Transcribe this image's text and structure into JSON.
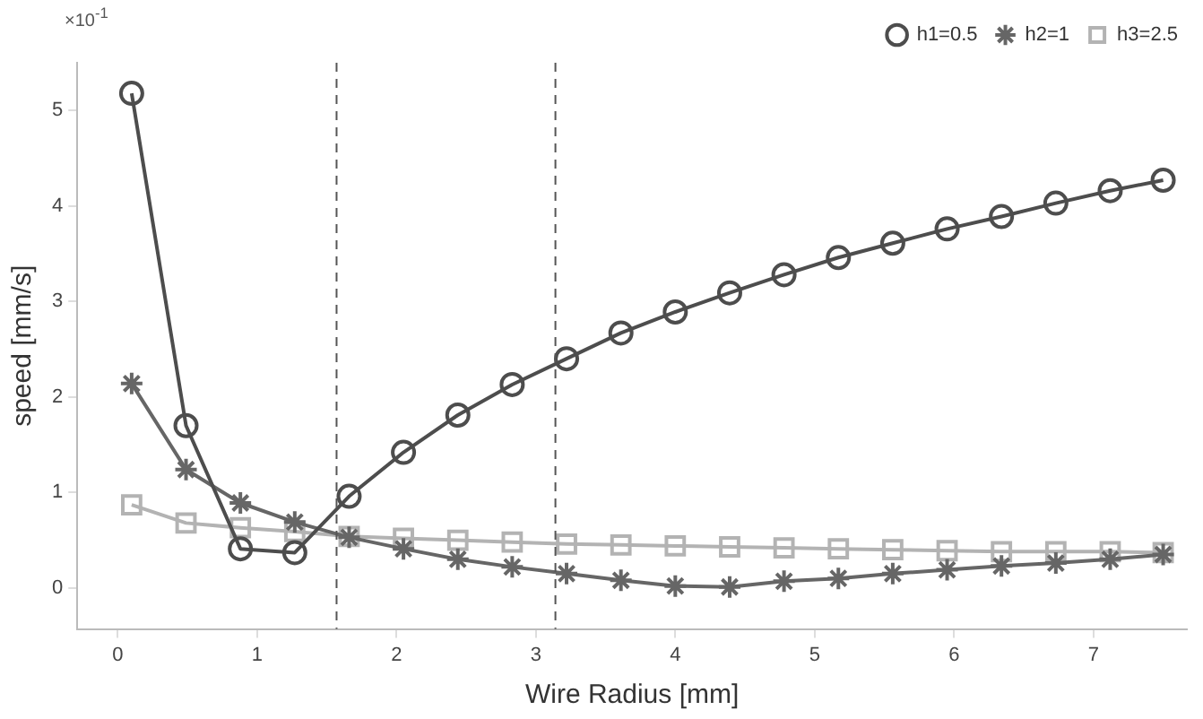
{
  "chart_data": {
    "type": "line",
    "xlabel": "Wire Radius [mm]",
    "ylabel": "speed [mm/s]",
    "annotations": [
      "×10$^{-1}$"
    ],
    "xlim": [
      -0.29,
      7.67
    ],
    "xticks": [
      0,
      1,
      2,
      3,
      4,
      5,
      6,
      7
    ],
    "ylim": [
      -0.43,
      5.5
    ],
    "yticks": [
      0,
      1,
      2,
      3,
      4,
      5
    ],
    "grid": false,
    "legend": "top right",
    "line_style": "solid",
    "x": [
      0.1,
      0.49,
      0.88,
      1.27,
      1.66,
      2.05,
      2.44,
      2.83,
      3.22,
      3.61,
      4.0,
      4.39,
      4.78,
      5.17,
      5.56,
      5.95,
      6.34,
      6.73,
      7.12,
      7.5
    ],
    "series": [
      {
        "name": "h1=0.5",
        "color": "#4d4d4d",
        "marker": "circle",
        "values": [
          5.18,
          1.7,
          0.41,
          0.37,
          0.96,
          1.42,
          1.81,
          2.13,
          2.4,
          2.67,
          2.89,
          3.09,
          3.28,
          3.46,
          3.61,
          3.76,
          3.89,
          4.03,
          4.16,
          4.27
        ]
      },
      {
        "name": "h2=1",
        "color": "#666666",
        "marker": "cross",
        "values": [
          2.14,
          1.24,
          0.89,
          0.69,
          0.53,
          0.41,
          0.3,
          0.22,
          0.15,
          0.08,
          0.02,
          0.01,
          0.07,
          0.1,
          0.15,
          0.19,
          0.23,
          0.26,
          0.3,
          0.35
        ]
      },
      {
        "name": "h3=2.5",
        "color": "#b3b3b3",
        "marker": "square",
        "values": [
          0.87,
          0.68,
          0.63,
          0.59,
          0.54,
          0.52,
          0.5,
          0.48,
          0.46,
          0.45,
          0.44,
          0.43,
          0.42,
          0.41,
          0.4,
          0.39,
          0.38,
          0.38,
          0.38,
          0.37
        ]
      }
    ],
    "ref_lines": [
      {
        "axis": "x",
        "value": 1.57,
        "color": "#555555",
        "line_style": "dashed"
      },
      {
        "axis": "x",
        "value": 3.14,
        "color": "#555555",
        "line_style": "dashed"
      }
    ]
  }
}
